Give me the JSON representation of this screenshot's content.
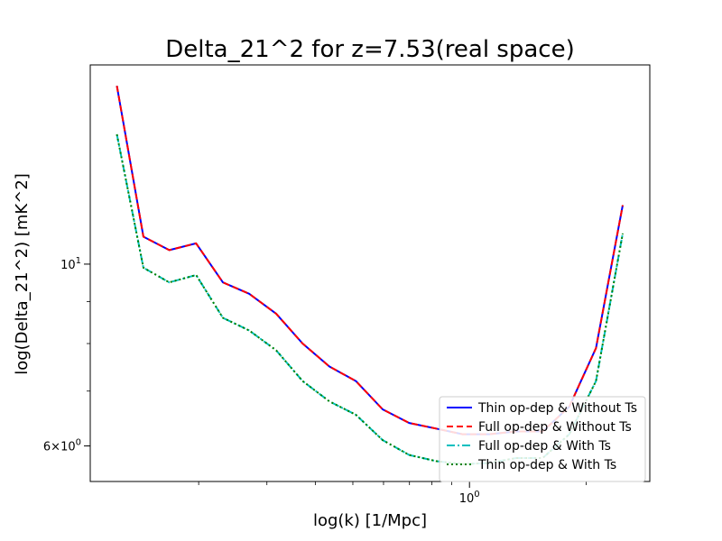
{
  "chart_data": {
    "type": "line",
    "title": "Delta_21^2 for z=7.53(real space)",
    "xlabel": "log(k) [1/Mpc]",
    "ylabel": "log(Delta_21^2) [mK^2]",
    "xscale": "log",
    "yscale": "log",
    "xlim": [
      0.105,
      2.92
    ],
    "ylim": [
      5.43,
      17.5
    ],
    "grid": false,
    "legend_position": "lower-right",
    "x_tick_labels": [
      {
        "value": 1.0,
        "label": "10^0"
      }
    ],
    "y_tick_labels": [
      {
        "value": 6.0,
        "label": "6×10^0"
      },
      {
        "value": 10.0,
        "label": "10^1"
      }
    ],
    "x": [
      0.123,
      0.17,
      0.23,
      0.31,
      0.42,
      0.57,
      0.77,
      1.05,
      1.42,
      1.93,
      2.61
    ],
    "series": [
      {
        "name": "Thin op-dep & Without Ts",
        "color": "#0000ff",
        "style": "solid",
        "x": [
          0.123,
          0.144,
          0.168,
          0.197,
          0.231,
          0.27,
          0.317,
          0.371,
          0.435,
          0.509,
          0.597,
          0.699,
          0.82,
          0.96,
          1.125,
          1.318,
          1.545,
          1.81,
          2.121,
          2.486
        ],
        "y": [
          16.5,
          10.8,
          10.4,
          10.6,
          9.5,
          9.2,
          8.7,
          8.0,
          7.5,
          7.2,
          6.65,
          6.4,
          6.3,
          6.2,
          6.2,
          6.25,
          6.25,
          6.7,
          7.9,
          11.8
        ]
      },
      {
        "name": "Full op-dep & Without Ts",
        "color": "#ff0000",
        "style": "dashed",
        "x": [
          0.123,
          0.144,
          0.168,
          0.197,
          0.231,
          0.27,
          0.317,
          0.371,
          0.435,
          0.509,
          0.597,
          0.699,
          0.82,
          0.96,
          1.125,
          1.318,
          1.545,
          1.81,
          2.121,
          2.486
        ],
        "y": [
          16.5,
          10.8,
          10.4,
          10.6,
          9.5,
          9.2,
          8.7,
          8.0,
          7.5,
          7.2,
          6.65,
          6.4,
          6.3,
          6.2,
          6.2,
          6.25,
          6.25,
          6.7,
          7.9,
          11.8
        ]
      },
      {
        "name": "Full op-dep & With Ts",
        "color": "#00bfbf",
        "style": "dashdot",
        "x": [
          0.123,
          0.144,
          0.168,
          0.197,
          0.231,
          0.27,
          0.317,
          0.371,
          0.435,
          0.509,
          0.597,
          0.699,
          0.82,
          0.96,
          1.125,
          1.318,
          1.545,
          1.81,
          2.121,
          2.486
        ],
        "y": [
          14.4,
          9.9,
          9.5,
          9.7,
          8.6,
          8.3,
          7.85,
          7.2,
          6.8,
          6.55,
          6.1,
          5.85,
          5.75,
          5.7,
          5.72,
          5.8,
          5.8,
          6.2,
          7.2,
          10.9
        ]
      },
      {
        "name": "Thin op-dep & With Ts",
        "color": "#008000",
        "style": "dotted",
        "x": [
          0.123,
          0.144,
          0.168,
          0.197,
          0.231,
          0.27,
          0.317,
          0.371,
          0.435,
          0.509,
          0.597,
          0.699,
          0.82,
          0.96,
          1.125,
          1.318,
          1.545,
          1.81,
          2.121,
          2.486
        ],
        "y": [
          14.4,
          9.9,
          9.5,
          9.7,
          8.6,
          8.3,
          7.85,
          7.2,
          6.8,
          6.55,
          6.1,
          5.85,
          5.75,
          5.7,
          5.72,
          5.8,
          5.8,
          6.2,
          7.2,
          10.9
        ]
      }
    ]
  }
}
